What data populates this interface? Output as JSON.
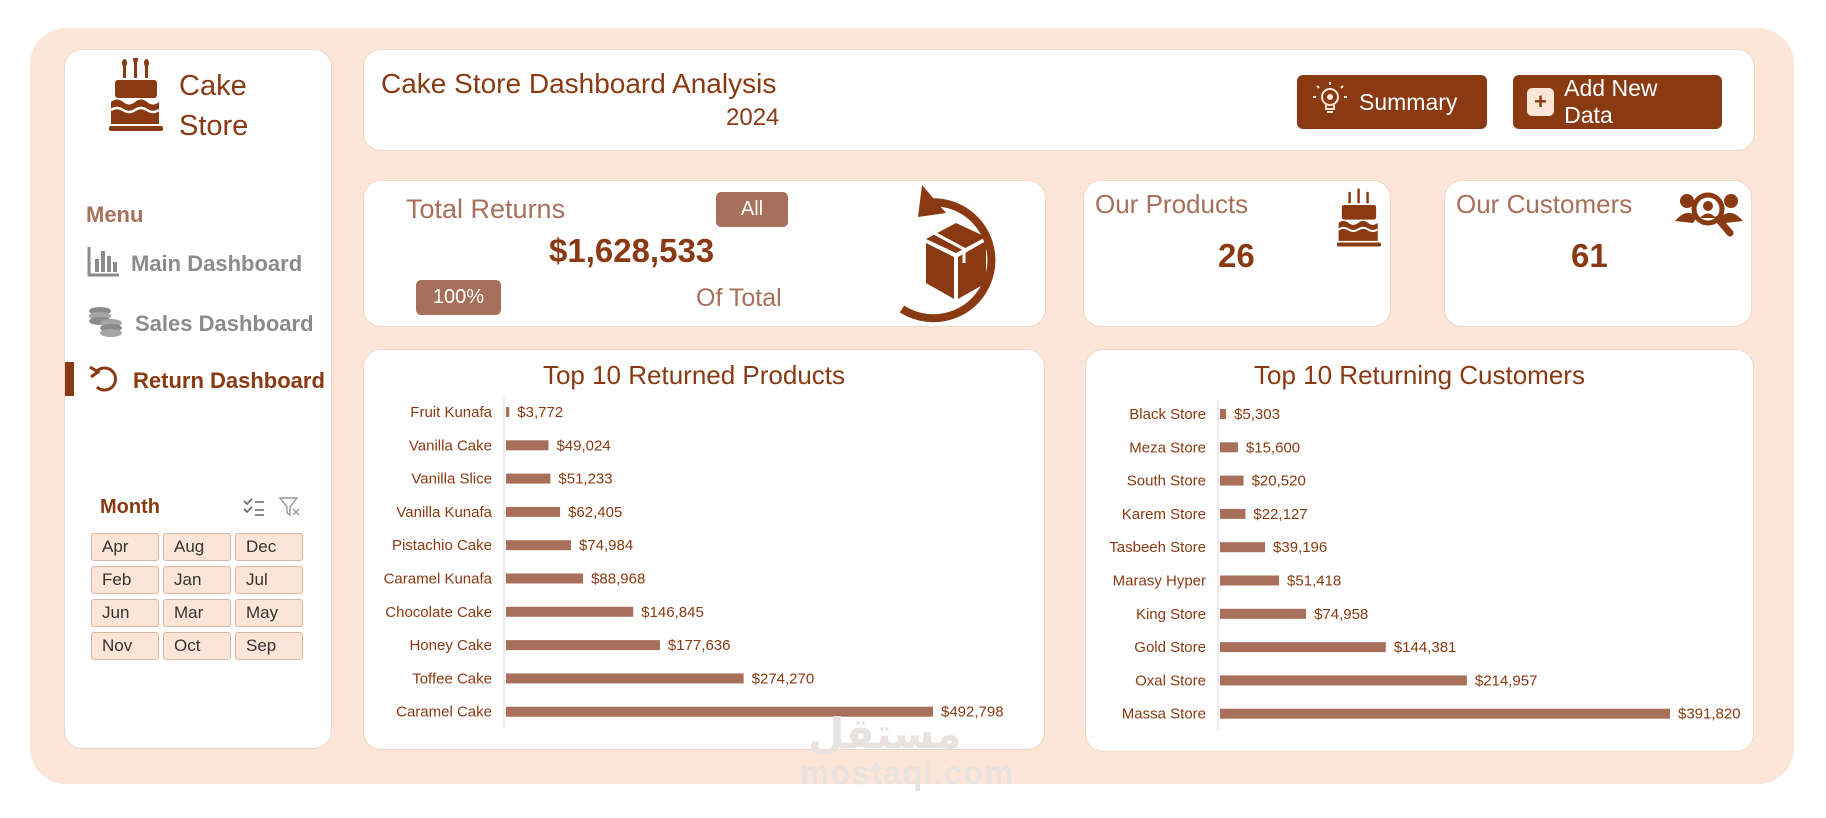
{
  "brand": {
    "line1": "Cake",
    "line2": "Store"
  },
  "menu": {
    "title": "Menu",
    "items": [
      {
        "label": "Main Dashboard",
        "icon": "bar-chart-icon"
      },
      {
        "label": "Sales Dashboard",
        "icon": "coins-icon"
      },
      {
        "label": "Return Dashboard",
        "icon": "return-arrow-icon"
      }
    ]
  },
  "slicer": {
    "title": "Month",
    "months": [
      "Apr",
      "Aug",
      "Dec",
      "Feb",
      "Jan",
      "Jul",
      "Jun",
      "Mar",
      "May",
      "Nov",
      "Oct",
      "Sep"
    ]
  },
  "header": {
    "title": "Cake Store Dashboard Analysis",
    "year": "2024",
    "summary_label": "Summary",
    "add_label": "Add New Data",
    "add_symbol": "+"
  },
  "returns": {
    "label": "Total Returns",
    "filter": "All",
    "value": "$1,628,533",
    "percent": "100%",
    "of_total": "Of Total"
  },
  "products_kpi": {
    "label": "Our Products",
    "value": "26"
  },
  "customers_kpi": {
    "label": "Our Customers",
    "value": "61"
  },
  "colors": {
    "brand": "#8a3a12",
    "accent": "#a8705a",
    "background": "#fde6d7"
  },
  "chart_data": [
    {
      "type": "bar",
      "orientation": "horizontal",
      "title": "Top 10 Returned Products",
      "categories": [
        "Fruit Kunafa",
        "Vanilla Cake",
        "Vanilla Slice",
        "Vanilla Kunafa",
        "Pistachio Cake",
        "Caramel Kunafa",
        "Chocolate Cake",
        "Honey Cake",
        "Toffee Cake",
        "Caramel Cake"
      ],
      "values": [
        3772,
        49024,
        51233,
        62405,
        74984,
        88968,
        146845,
        177636,
        274270,
        492798
      ],
      "labels": [
        "$3,772",
        "$49,024",
        "$51,233",
        "$62,405",
        "$74,984",
        "$88,968",
        "$146,845",
        "$177,636",
        "$274,270",
        "$492,798"
      ],
      "xlim": [
        0,
        492798
      ]
    },
    {
      "type": "bar",
      "orientation": "horizontal",
      "title": "Top 10 Returning Customers",
      "categories": [
        "Black Store",
        "Meza Store",
        "South Store",
        "Karem Store",
        "Tasbeeh Store",
        "Marasy Hyper",
        "King Store",
        "Gold Store",
        "Oxal Store",
        "Massa Store"
      ],
      "values": [
        5303,
        15600,
        20520,
        22127,
        39196,
        51418,
        74958,
        144381,
        214957,
        391820
      ],
      "labels": [
        "$5,303",
        "$15,600",
        "$20,520",
        "$22,127",
        "$39,196",
        "$51,418",
        "$74,958",
        "$144,381",
        "$214,957",
        "$391,820"
      ],
      "xlim": [
        0,
        391820
      ]
    }
  ],
  "watermark": {
    "arabic": "مستقل",
    "latin": "mostaql.com"
  }
}
